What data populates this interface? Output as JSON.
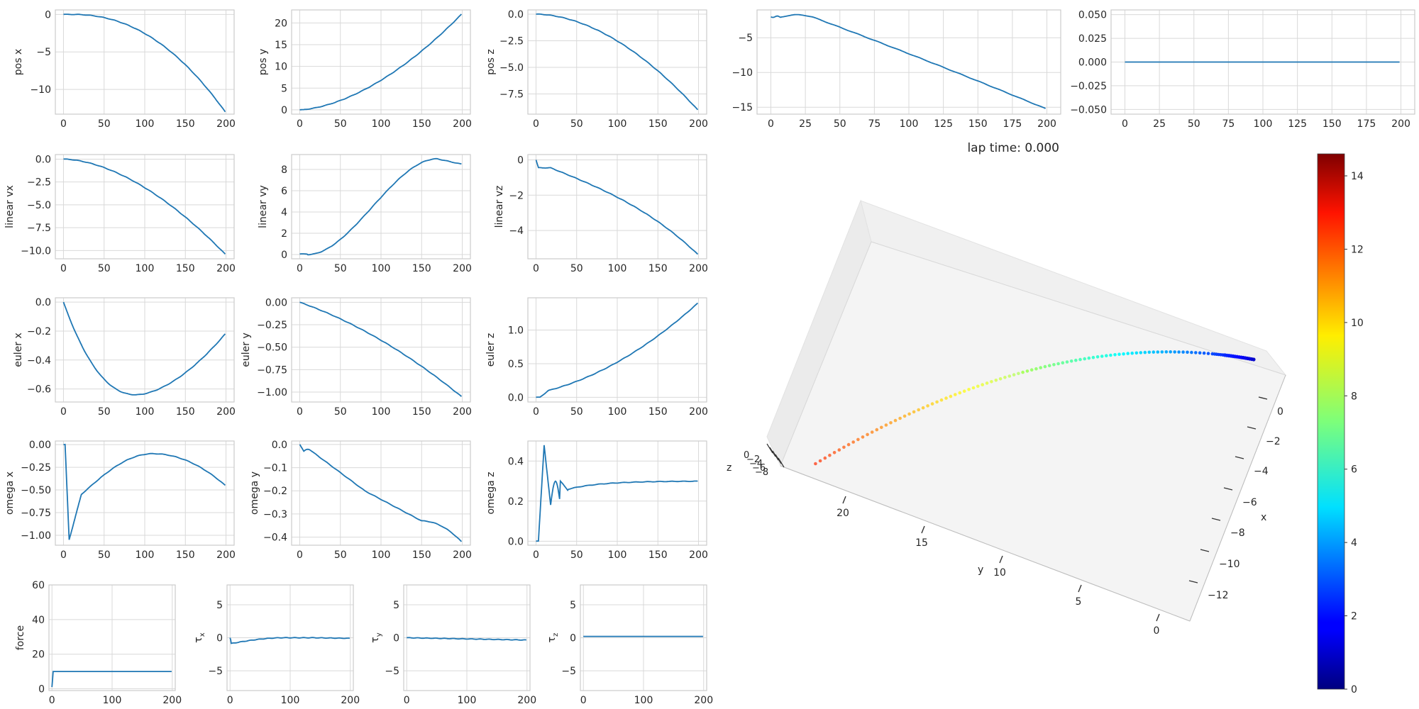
{
  "figure": {
    "lap_time_label": "lap time: 0.000",
    "colors": {
      "series": "#1f77b4",
      "grid": "#d9d9d9",
      "frame": "#cccccc",
      "tick_text": "#262626",
      "pane": "#f2f2f2"
    }
  },
  "chart_data": [
    {
      "id": "pos_x",
      "type": "line",
      "ylabel": "pos x",
      "xlim": [
        -10,
        210
      ],
      "ylim": [
        -13.3,
        0.6
      ],
      "xticks": [
        0,
        50,
        100,
        150,
        200
      ],
      "yticks": [
        {
          "v": 0,
          "t": "0"
        },
        {
          "v": -5,
          "t": "−5"
        },
        {
          "v": -10,
          "t": "−10"
        }
      ],
      "grid": true,
      "fn": "posx",
      "x": [
        0,
        199
      ]
    },
    {
      "id": "pos_y",
      "type": "line",
      "ylabel": "pos y",
      "xlim": [
        -10,
        210
      ],
      "ylim": [
        -1,
        23
      ],
      "xticks": [
        0,
        50,
        100,
        150,
        200
      ],
      "yticks": [
        {
          "v": 0,
          "t": "0"
        },
        {
          "v": 5,
          "t": "5"
        },
        {
          "v": 10,
          "t": "10"
        },
        {
          "v": 15,
          "t": "15"
        },
        {
          "v": 20,
          "t": "20"
        }
      ],
      "grid": true,
      "fn": "posy",
      "x": [
        0,
        199
      ]
    },
    {
      "id": "pos_z",
      "type": "line",
      "ylabel": "pos z",
      "xlim": [
        -10,
        210
      ],
      "ylim": [
        -9.4,
        0.4
      ],
      "xticks": [
        0,
        50,
        100,
        150,
        200
      ],
      "yticks": [
        {
          "v": 0,
          "t": "0.0"
        },
        {
          "v": -2.5,
          "t": "−2.5"
        },
        {
          "v": -5,
          "t": "−5.0"
        },
        {
          "v": -7.5,
          "t": "−7.5"
        }
      ],
      "grid": true,
      "fn": "posz",
      "x": [
        0,
        199
      ]
    },
    {
      "id": "pos_4",
      "type": "line",
      "ylabel": "",
      "xlim": [
        -10,
        210
      ],
      "ylim": [
        -16,
        -1
      ],
      "xticks": [
        0,
        25,
        50,
        75,
        100,
        125,
        150,
        175,
        200
      ],
      "yticks": [
        {
          "v": -5,
          "t": "−5"
        },
        {
          "v": -10,
          "t": "−10"
        },
        {
          "v": -15,
          "t": "−15"
        }
      ],
      "grid": true,
      "fn": "pos4",
      "x": [
        0,
        199
      ]
    },
    {
      "id": "pos_5",
      "type": "line",
      "ylabel": "",
      "xlim": [
        -10,
        210
      ],
      "ylim": [
        -0.055,
        0.055
      ],
      "xticks": [
        0,
        25,
        50,
        75,
        100,
        125,
        150,
        175,
        200
      ],
      "yticks": [
        {
          "v": 0.05,
          "t": "0.050"
        },
        {
          "v": 0.025,
          "t": "0.025"
        },
        {
          "v": 0,
          "t": "0.000"
        },
        {
          "v": -0.025,
          "t": "−0.025"
        },
        {
          "v": -0.05,
          "t": "−0.050"
        }
      ],
      "grid": true,
      "fn": "zero",
      "x": [
        0,
        199
      ]
    },
    {
      "id": "linear_vx",
      "type": "line",
      "ylabel": "linear vx",
      "xlim": [
        -10,
        210
      ],
      "ylim": [
        -10.9,
        0.5
      ],
      "xticks": [
        0,
        50,
        100,
        150,
        200
      ],
      "yticks": [
        {
          "v": 0,
          "t": "0.0"
        },
        {
          "v": -2.5,
          "t": "−2.5"
        },
        {
          "v": -5,
          "t": "−5.0"
        },
        {
          "v": -7.5,
          "t": "−7.5"
        },
        {
          "v": -10,
          "t": "−10.0"
        }
      ],
      "grid": true,
      "fn": "vx",
      "x": [
        0,
        199
      ]
    },
    {
      "id": "linear_vy",
      "type": "line",
      "ylabel": "linear vy",
      "xlim": [
        -10,
        210
      ],
      "ylim": [
        -0.4,
        9.4
      ],
      "xticks": [
        0,
        50,
        100,
        150,
        200
      ],
      "yticks": [
        {
          "v": 0,
          "t": "0"
        },
        {
          "v": 2,
          "t": "2"
        },
        {
          "v": 4,
          "t": "4"
        },
        {
          "v": 6,
          "t": "6"
        },
        {
          "v": 8,
          "t": "8"
        }
      ],
      "grid": true,
      "fn": "vy",
      "x": [
        0,
        199
      ]
    },
    {
      "id": "linear_vz",
      "type": "line",
      "ylabel": "linear vz",
      "xlim": [
        -10,
        210
      ],
      "ylim": [
        -5.6,
        0.3
      ],
      "xticks": [
        0,
        50,
        100,
        150,
        200
      ],
      "yticks": [
        {
          "v": 0,
          "t": "0"
        },
        {
          "v": -2,
          "t": "−2"
        },
        {
          "v": -4,
          "t": "−4"
        }
      ],
      "grid": true,
      "fn": "vz",
      "x": [
        0,
        199
      ]
    },
    {
      "id": "euler_x",
      "type": "line",
      "ylabel": "euler x",
      "xlim": [
        -10,
        210
      ],
      "ylim": [
        -0.69,
        0.03
      ],
      "xticks": [
        0,
        50,
        100,
        150,
        200
      ],
      "yticks": [
        {
          "v": 0,
          "t": "0.0"
        },
        {
          "v": -0.2,
          "t": "−0.2"
        },
        {
          "v": -0.4,
          "t": "−0.4"
        },
        {
          "v": -0.6,
          "t": "−0.6"
        }
      ],
      "grid": true,
      "fn": "ex",
      "x": [
        0,
        199
      ]
    },
    {
      "id": "euler_y",
      "type": "line",
      "ylabel": "euler y",
      "xlim": [
        -10,
        210
      ],
      "ylim": [
        -1.11,
        0.05
      ],
      "xticks": [
        0,
        50,
        100,
        150,
        200
      ],
      "yticks": [
        {
          "v": 0,
          "t": "0.00"
        },
        {
          "v": -0.25,
          "t": "−0.25"
        },
        {
          "v": -0.5,
          "t": "−0.50"
        },
        {
          "v": -0.75,
          "t": "−0.75"
        },
        {
          "v": -1,
          "t": "−1.00"
        }
      ],
      "grid": true,
      "fn": "ey",
      "x": [
        0,
        199
      ]
    },
    {
      "id": "euler_z",
      "type": "line",
      "ylabel": "euler z",
      "xlim": [
        -10,
        210
      ],
      "ylim": [
        -0.07,
        1.48
      ],
      "xticks": [
        0,
        50,
        100,
        150,
        200
      ],
      "yticks": [
        {
          "v": 0,
          "t": "0.0"
        },
        {
          "v": 0.5,
          "t": "0.5"
        },
        {
          "v": 1,
          "t": "1.0"
        }
      ],
      "grid": true,
      "fn": "ez",
      "x": [
        0,
        199
      ]
    },
    {
      "id": "omega_x",
      "type": "line",
      "ylabel": "omega x",
      "xlim": [
        -10,
        210
      ],
      "ylim": [
        -1.11,
        0.04
      ],
      "xticks": [
        0,
        50,
        100,
        150,
        200
      ],
      "yticks": [
        {
          "v": 0,
          "t": "0.00"
        },
        {
          "v": -0.25,
          "t": "−0.25"
        },
        {
          "v": -0.5,
          "t": "−0.50"
        },
        {
          "v": -0.75,
          "t": "−0.75"
        },
        {
          "v": -1,
          "t": "−1.00"
        }
      ],
      "grid": true,
      "fn": "wx",
      "x": [
        0,
        199
      ]
    },
    {
      "id": "omega_y",
      "type": "line",
      "ylabel": "omega y",
      "xlim": [
        -10,
        210
      ],
      "ylim": [
        -0.435,
        0.015
      ],
      "xticks": [
        0,
        50,
        100,
        150,
        200
      ],
      "yticks": [
        {
          "v": 0,
          "t": "0.0"
        },
        {
          "v": -0.1,
          "t": "−0.1"
        },
        {
          "v": -0.2,
          "t": "−0.2"
        },
        {
          "v": -0.3,
          "t": "−0.3"
        },
        {
          "v": -0.4,
          "t": "−0.4"
        }
      ],
      "grid": true,
      "fn": "wy",
      "x": [
        0,
        199
      ]
    },
    {
      "id": "omega_z",
      "type": "line",
      "ylabel": "omega z",
      "xlim": [
        -10,
        210
      ],
      "ylim": [
        -0.02,
        0.5
      ],
      "xticks": [
        0,
        50,
        100,
        150,
        200
      ],
      "yticks": [
        {
          "v": 0,
          "t": "0.0"
        },
        {
          "v": 0.2,
          "t": "0.2"
        },
        {
          "v": 0.4,
          "t": "0.4"
        }
      ],
      "grid": true,
      "fn": "wz",
      "x": [
        0,
        199
      ]
    },
    {
      "id": "force",
      "type": "line",
      "ylabel": "force",
      "xlim": [
        -5,
        205
      ],
      "ylim": [
        -1,
        60
      ],
      "xticks": [
        0,
        100,
        200
      ],
      "yticks": [
        {
          "v": 0,
          "t": "0"
        },
        {
          "v": 20,
          "t": "20"
        },
        {
          "v": 40,
          "t": "40"
        },
        {
          "v": 60,
          "t": "60"
        }
      ],
      "grid": true,
      "fn": "force",
      "x": [
        0,
        199
      ]
    },
    {
      "id": "tau_x",
      "type": "line",
      "ylabel": "τx",
      "ylabel_main": "τ",
      "ylabel_sub": "x",
      "xlim": [
        -5,
        205
      ],
      "ylim": [
        -8,
        8
      ],
      "xticks": [
        0,
        100,
        200
      ],
      "yticks": [
        {
          "v": 5,
          "t": "5"
        },
        {
          "v": 0,
          "t": "0"
        },
        {
          "v": -5,
          "t": "−5"
        }
      ],
      "grid": true,
      "fn": "tx",
      "x": [
        0,
        199
      ]
    },
    {
      "id": "tau_y",
      "type": "line",
      "ylabel": "τy",
      "ylabel_main": "τ",
      "ylabel_sub": "y",
      "xlim": [
        -5,
        205
      ],
      "ylim": [
        -8,
        8
      ],
      "xticks": [
        0,
        100,
        200
      ],
      "yticks": [
        {
          "v": 5,
          "t": "5"
        },
        {
          "v": 0,
          "t": "0"
        },
        {
          "v": -5,
          "t": "−5"
        }
      ],
      "grid": true,
      "fn": "ty",
      "x": [
        0,
        199
      ]
    },
    {
      "id": "tau_z",
      "type": "line",
      "ylabel": "τz",
      "ylabel_main": "τ",
      "ylabel_sub": "z",
      "xlim": [
        -5,
        205
      ],
      "ylim": [
        -8,
        8
      ],
      "xticks": [
        0,
        100,
        200
      ],
      "yticks": [
        {
          "v": 5,
          "t": "5"
        },
        {
          "v": 0,
          "t": "0"
        },
        {
          "v": -5,
          "t": "−5"
        }
      ],
      "grid": true,
      "fn": "tz",
      "x": [
        0,
        199
      ]
    },
    {
      "id": "trajectory_3d",
      "type": "scatter",
      "axis_labels": {
        "x": "x",
        "y": "y",
        "z": "z"
      },
      "x_axis_ticks": [
        "0",
        "−2",
        "−4",
        "−6",
        "−8",
        "−10",
        "−12"
      ],
      "y_axis_ticks": [
        "20",
        "15",
        "10",
        "5",
        "0"
      ],
      "z_axis_ticks": [
        "0",
        "−2",
        "−4",
        "−6",
        "−8"
      ],
      "color_by": "speed",
      "colormap": "jet"
    },
    {
      "id": "colorbar",
      "type": "colorbar",
      "range": [
        0,
        14.6
      ],
      "colormap": "jet",
      "ticks": [
        {
          "v": 0,
          "t": "0"
        },
        {
          "v": 2,
          "t": "2"
        },
        {
          "v": 4,
          "t": "4"
        },
        {
          "v": 6,
          "t": "6"
        },
        {
          "v": 8,
          "t": "8"
        },
        {
          "v": 10,
          "t": "10"
        },
        {
          "v": 12,
          "t": "12"
        },
        {
          "v": 14,
          "t": "14"
        }
      ]
    }
  ]
}
